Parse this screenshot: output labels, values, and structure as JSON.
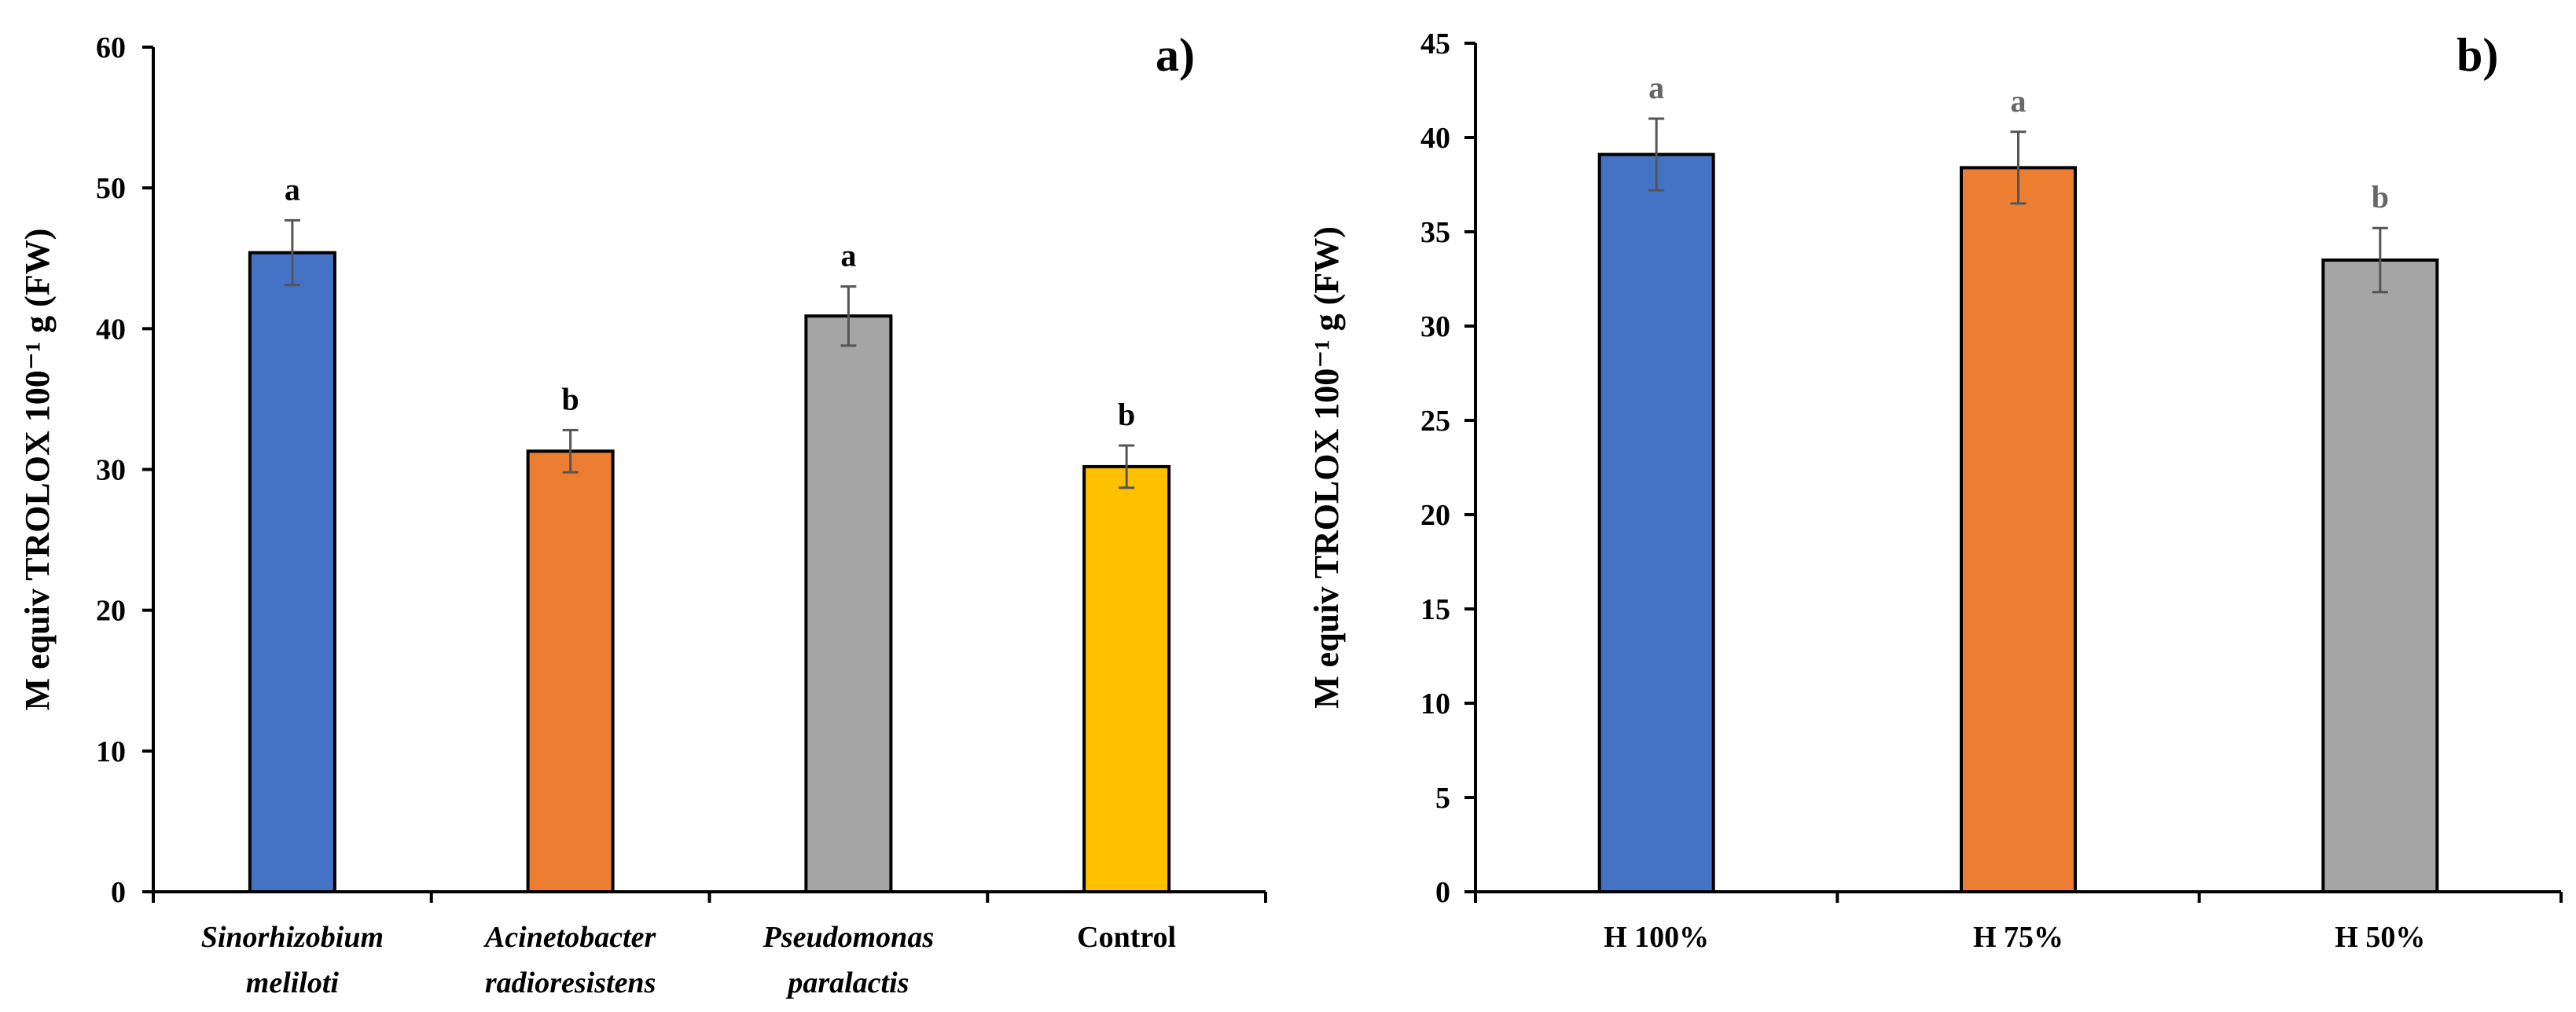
{
  "chart_data": [
    {
      "type": "bar",
      "panel_label": "a)",
      "ylabel": "M equiv TROLOX 100⁻¹ g (FW)",
      "ylim": [
        0,
        60
      ],
      "yticks": [
        0,
        10,
        20,
        30,
        40,
        50,
        60
      ],
      "categories": [
        [
          "Sinorhizobium",
          "meliloti"
        ],
        [
          "Acinetobacter",
          "radioresistens"
        ],
        [
          "Pseudomonas",
          "paralactis"
        ],
        [
          "Control"
        ]
      ],
      "italic_categories": [
        true,
        true,
        true,
        false
      ],
      "values": [
        45.4,
        31.3,
        40.9,
        30.2
      ],
      "errors": [
        2.3,
        1.5,
        2.1,
        1.5
      ],
      "letters": [
        "a",
        "b",
        "a",
        "b"
      ],
      "colors": [
        "#4472C4",
        "#ED7D31",
        "#A5A5A5",
        "#FFC000"
      ],
      "letter_gray": false
    },
    {
      "type": "bar",
      "panel_label": "b)",
      "ylabel": "M equiv TROLOX 100⁻¹ g (FW)",
      "ylim": [
        0,
        45
      ],
      "yticks": [
        0,
        5,
        10,
        15,
        20,
        25,
        30,
        35,
        40,
        45
      ],
      "categories": [
        [
          "H 100%"
        ],
        [
          "H 75%"
        ],
        [
          "H 50%"
        ]
      ],
      "italic_categories": [
        false,
        false,
        false
      ],
      "values": [
        39.1,
        38.4,
        33.5
      ],
      "errors": [
        1.9,
        1.9,
        1.7
      ],
      "letters": [
        "a",
        "a",
        "b"
      ],
      "colors": [
        "#4472C4",
        "#ED7D31",
        "#A5A5A5"
      ],
      "letter_gray": true
    }
  ]
}
